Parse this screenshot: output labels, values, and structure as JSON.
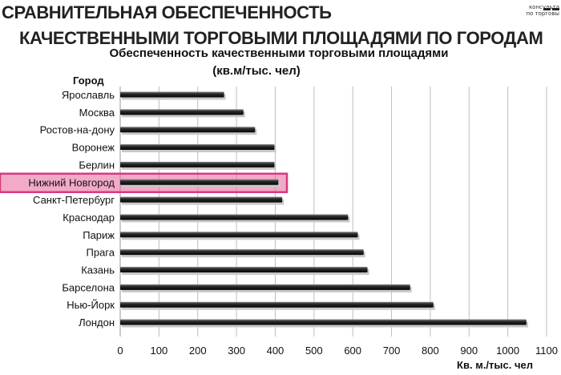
{
  "header": {
    "title_line1": "СРАВНИТЕЛЬНАЯ ОБЕСПЕЧЕННОСТЬ",
    "title_line2": "КАЧЕСТВЕННЫМИ ТОРГОВЫМИ ПЛОЩАДЯМИ ПО ГОРОДАМ",
    "logo_line1": "консульта",
    "logo_line2": "по торговы"
  },
  "chart_data": {
    "type": "bar",
    "orientation": "horizontal",
    "title": "Обеспеченность качественными торговыми площадями",
    "subtitle": "(кв.м/тыс. чел)",
    "ylabel": "Город",
    "xlabel": "Кв. м./тыс. чел",
    "categories": [
      "Ярославль",
      "Москва",
      "Ростов-на-дону",
      "Воронеж",
      "Берлин",
      "Нижний Новгород",
      "Санкт-Петербург",
      "Краснодар",
      "Париж",
      "Прага",
      "Казань",
      "Барселона",
      "Нью-Йорк",
      "Лондон"
    ],
    "values": [
      268,
      318,
      348,
      398,
      398,
      408,
      418,
      588,
      613,
      628,
      638,
      748,
      808,
      1048
    ],
    "xlim": [
      0,
      1100
    ],
    "xticks": [
      0,
      100,
      200,
      300,
      400,
      500,
      600,
      700,
      800,
      900,
      1000,
      1100
    ],
    "grid": "vertical",
    "bar_color": "#1a1a1a",
    "highlight": {
      "category": "Нижний Новгород",
      "color": "#e8659c"
    }
  }
}
